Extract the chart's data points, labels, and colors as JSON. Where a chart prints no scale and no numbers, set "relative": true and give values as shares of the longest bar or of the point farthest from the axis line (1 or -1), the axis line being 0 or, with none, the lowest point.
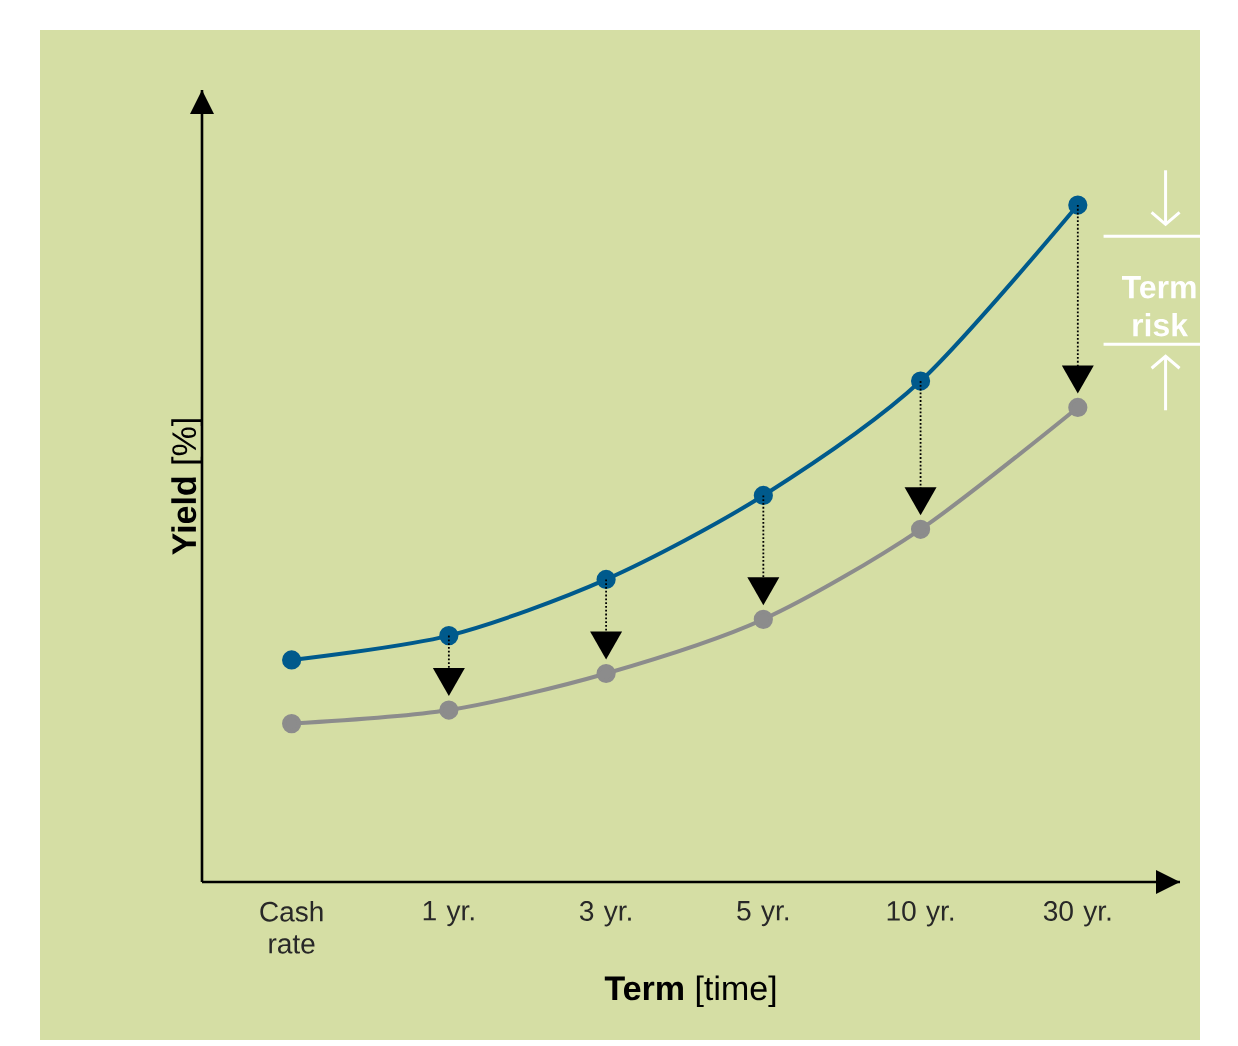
{
  "chart_data": {
    "type": "line",
    "relative": true,
    "xlabel": "**Term** [time]",
    "ylabel": "**Yield** [%]",
    "categories": [
      "Cash rate",
      "1 yr.",
      "3 yr.",
      "5 yr.",
      "10 yr.",
      "30 yr."
    ],
    "series": [
      {
        "color": "#005a8c",
        "values": [
          0.328,
          0.364,
          0.447,
          0.571,
          0.74,
          1
        ]
      },
      {
        "color": "#8c8c8c",
        "values": [
          0.234,
          0.254,
          0.308,
          0.388,
          0.521,
          0.701
        ]
      }
    ],
    "annotations": [
      "Term risk"
    ],
    "marker": "circle",
    "line_style": "solid",
    "tick_labels": "x",
    "grid": false
  }
}
